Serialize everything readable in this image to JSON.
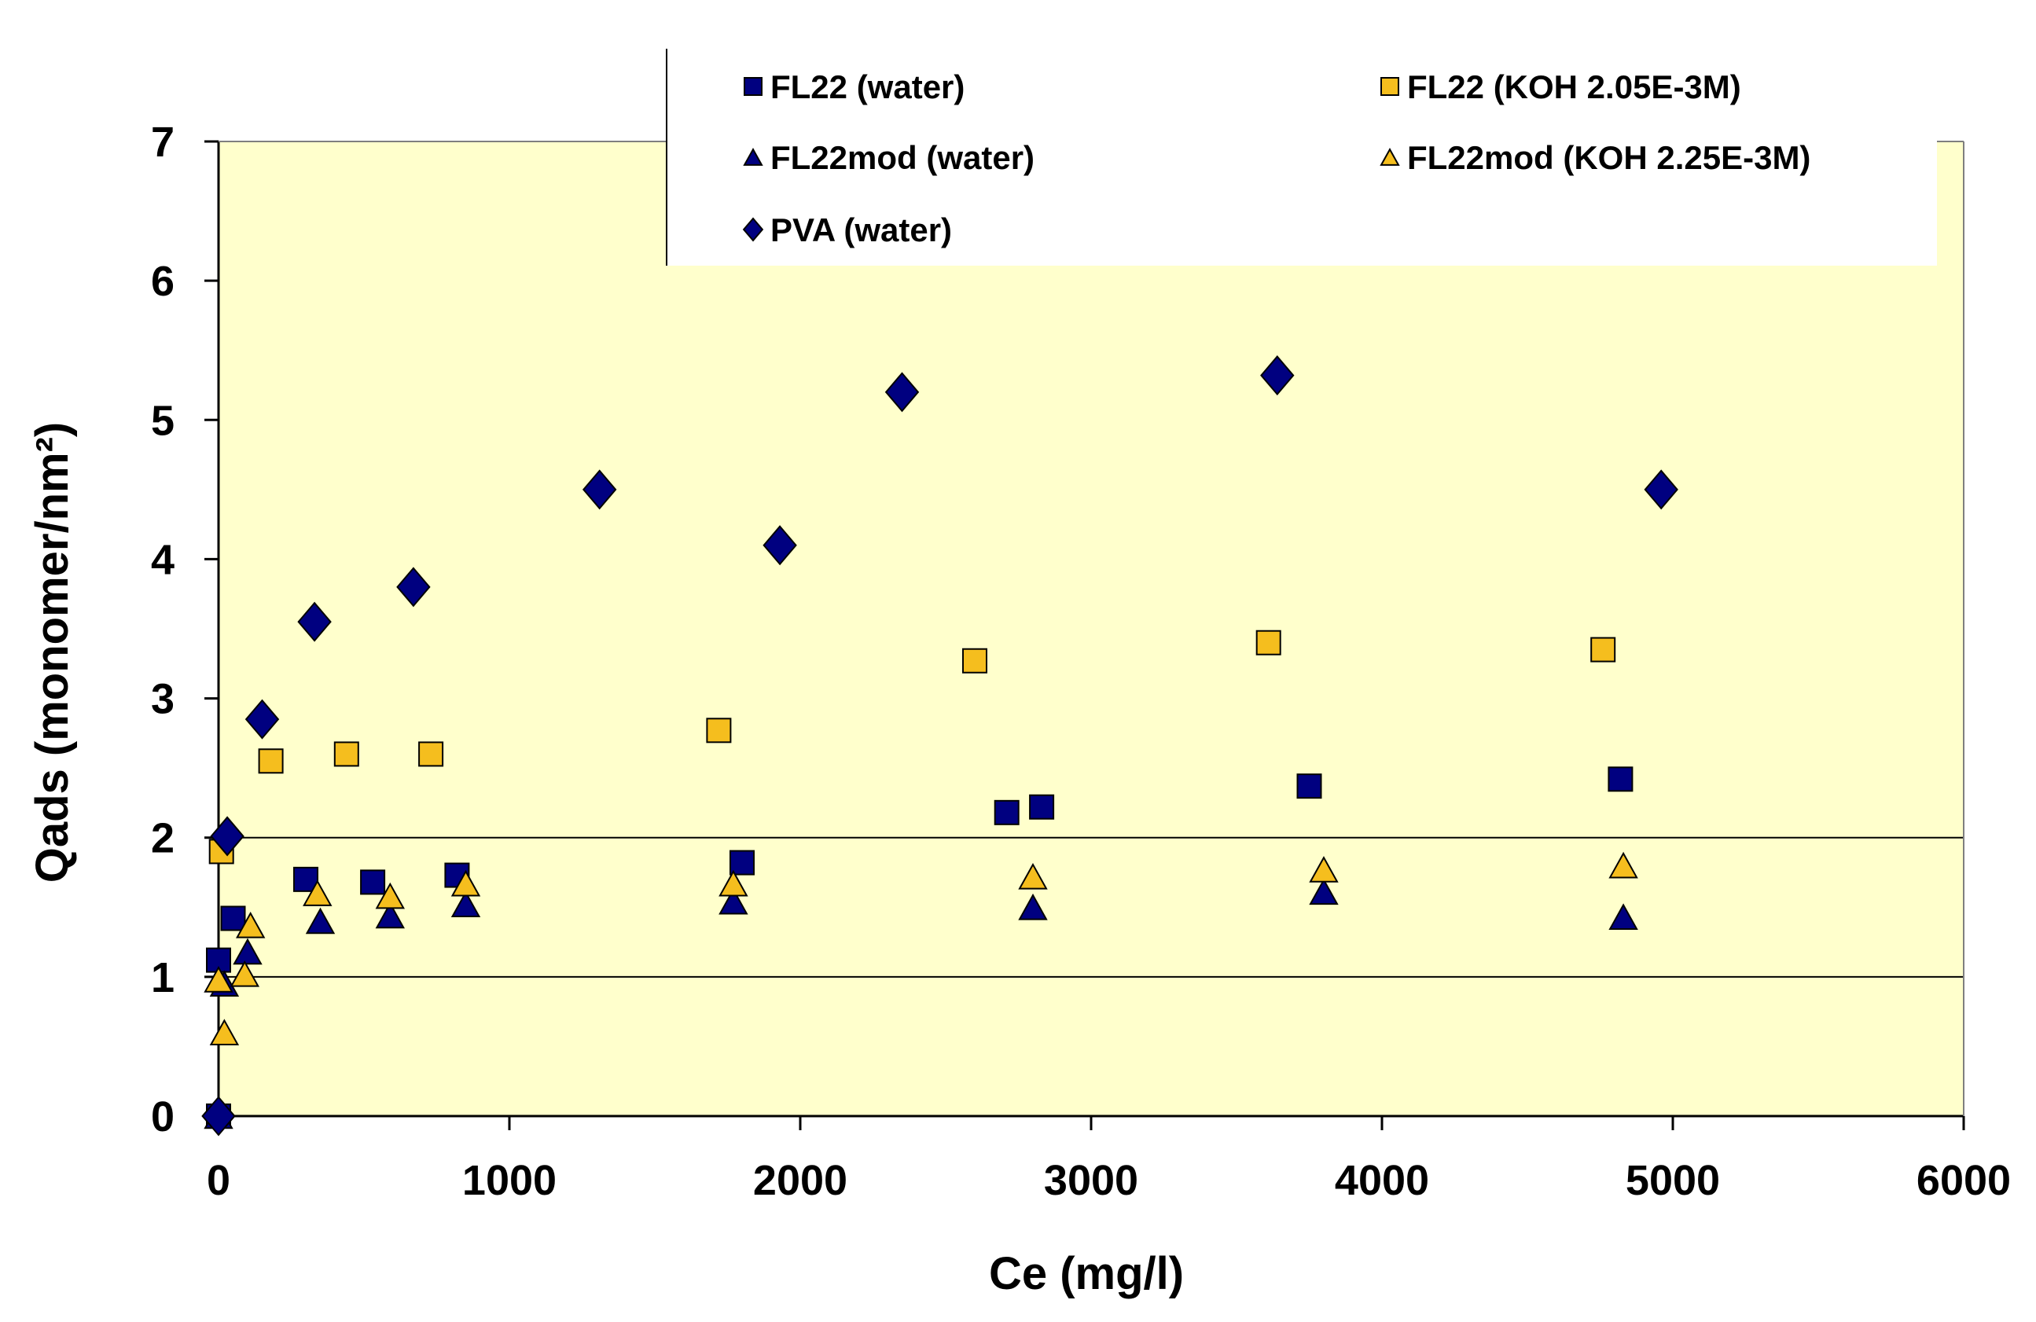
{
  "chart_data": {
    "type": "scatter",
    "title": "",
    "xlabel": "Ce (mg/l)",
    "ylabel": "Qads (monomer/nm²)",
    "xlim": [
      0,
      6000
    ],
    "ylim": [
      0,
      7
    ],
    "x_ticks": [
      0,
      1000,
      2000,
      3000,
      4000,
      5000,
      6000
    ],
    "y_ticks": [
      0,
      1,
      2,
      3,
      4,
      5,
      6,
      7
    ],
    "gridlines_y": [
      1,
      2
    ],
    "plot_background": "#FFFFCC",
    "legend_position": "top",
    "series": [
      {
        "name": "FL22 (water)",
        "marker": "square",
        "color": "#000080",
        "points": [
          [
            0,
            0
          ],
          [
            0,
            1.12
          ],
          [
            50,
            1.42
          ],
          [
            300,
            1.7
          ],
          [
            530,
            1.68
          ],
          [
            820,
            1.73
          ],
          [
            1800,
            1.82
          ],
          [
            2710,
            2.18
          ],
          [
            2830,
            2.22
          ],
          [
            3750,
            2.37
          ],
          [
            4820,
            2.42
          ]
        ]
      },
      {
        "name": "FL22 (KOH 2.05E-3M)",
        "marker": "square",
        "color": "#F5BE1E",
        "points": [
          [
            10,
            1.9
          ],
          [
            180,
            2.55
          ],
          [
            440,
            2.6
          ],
          [
            730,
            2.6
          ],
          [
            1720,
            2.77
          ],
          [
            2600,
            3.27
          ],
          [
            3610,
            3.4
          ],
          [
            4760,
            3.35
          ]
        ]
      },
      {
        "name": "FL22mod (water)",
        "marker": "triangle",
        "color": "#000080",
        "points": [
          [
            0,
            0
          ],
          [
            20,
            0.95
          ],
          [
            100,
            1.18
          ],
          [
            350,
            1.4
          ],
          [
            590,
            1.44
          ],
          [
            850,
            1.52
          ],
          [
            1770,
            1.54
          ],
          [
            2800,
            1.5
          ],
          [
            3800,
            1.61
          ],
          [
            4830,
            1.43
          ]
        ]
      },
      {
        "name": "FL22mod (KOH 2.25E-3M)",
        "marker": "triangle",
        "color": "#F5BE1E",
        "points": [
          [
            0,
            0.98
          ],
          [
            20,
            0.6
          ],
          [
            90,
            1.02
          ],
          [
            110,
            1.37
          ],
          [
            340,
            1.6
          ],
          [
            590,
            1.58
          ],
          [
            850,
            1.67
          ],
          [
            1770,
            1.67
          ],
          [
            2800,
            1.72
          ],
          [
            3800,
            1.77
          ],
          [
            4830,
            1.8
          ]
        ]
      },
      {
        "name": "PVA (water)",
        "marker": "diamond",
        "color": "#000080",
        "points": [
          [
            0,
            0
          ],
          [
            30,
            2.01
          ],
          [
            150,
            2.85
          ],
          [
            330,
            3.55
          ],
          [
            670,
            3.8
          ],
          [
            1310,
            4.5
          ],
          [
            1930,
            4.1
          ],
          [
            2350,
            5.2
          ],
          [
            3640,
            5.32
          ],
          [
            4960,
            4.5
          ]
        ]
      }
    ]
  }
}
